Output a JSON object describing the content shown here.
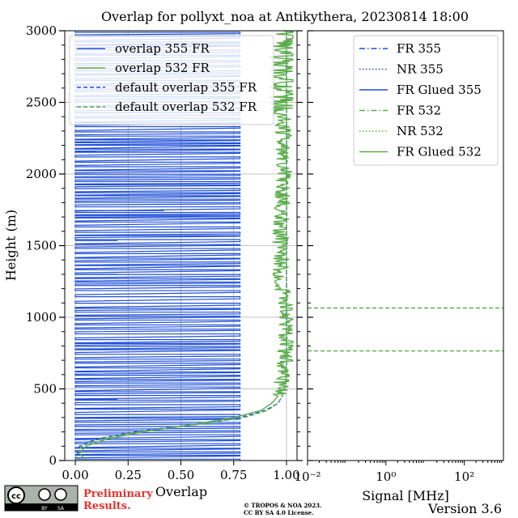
{
  "title": "Overlap for pollyxt_noa at Antikythera, 20230814 18:00",
  "footer": {
    "cc_badge": "cc BY SA",
    "preliminary": "Preliminary",
    "results": "Results.",
    "copyright_line1": "© TROPOS & NOA 2023.",
    "copyright_line2": "CC BY SA 4.0 License.",
    "version": "Version 3.6"
  },
  "colors": {
    "blue": "#1f4fd6",
    "green": "#5aad4a",
    "preliminary_red": "#e8322c"
  },
  "chart_data": [
    {
      "type": "line",
      "xlabel": "Overlap",
      "ylabel": "Height (m)",
      "xlim": [
        -0.05,
        1.05
      ],
      "ylim": [
        0,
        3000
      ],
      "x_ticks": [
        "0.00",
        "0.25",
        "0.50",
        "0.75",
        "1.00"
      ],
      "x_tick_values": [
        0,
        0.25,
        0.5,
        0.75,
        1.0
      ],
      "y_ticks": [
        "0",
        "500",
        "1000",
        "1500",
        "2000",
        "2500",
        "3000"
      ],
      "y_tick_values": [
        0,
        500,
        1000,
        1500,
        2000,
        2500,
        3000
      ],
      "grid": true,
      "legend_placement": "top-left",
      "series": [
        {
          "name": "overlap 355 FR",
          "color": "#1f4fd6",
          "style": "solid",
          "description_points": "noisy, alternates between 0 and 0.78",
          "x_range": [
            0,
            0.78
          ]
        },
        {
          "name": "overlap 532 FR",
          "color": "#5aad4a",
          "style": "solid",
          "height": [
            0,
            50,
            100,
            150,
            200,
            250,
            300,
            350,
            400,
            450,
            500,
            600,
            800,
            1000,
            1200,
            1500,
            2000,
            2500,
            3000
          ],
          "values": [
            0.05,
            0.02,
            0.05,
            0.15,
            0.32,
            0.55,
            0.75,
            0.88,
            0.93,
            0.96,
            0.97,
            0.99,
            1.0,
            1.0,
            0.98,
            0.97,
            0.99,
            0.98,
            1.0
          ]
        },
        {
          "name": "default overlap 355 FR",
          "color": "#1f4fd6",
          "style": "dashed",
          "height": [
            0,
            100,
            150,
            200,
            250,
            300,
            350,
            400,
            450,
            500,
            600,
            800,
            1200,
            2000,
            3000
          ],
          "values": [
            0.0,
            0.02,
            0.1,
            0.28,
            0.55,
            0.78,
            0.9,
            0.96,
            0.98,
            0.99,
            1.0,
            1.0,
            1.0,
            1.0,
            1.0
          ]
        },
        {
          "name": "default overlap 532 FR",
          "color": "#5aad4a",
          "style": "dashed",
          "height": [
            0,
            100,
            150,
            200,
            250,
            300,
            350,
            400,
            450,
            500,
            600,
            800,
            1200,
            2000,
            3000
          ],
          "values": [
            0.0,
            0.03,
            0.12,
            0.3,
            0.57,
            0.8,
            0.91,
            0.96,
            0.98,
            0.99,
            1.0,
            1.0,
            1.0,
            1.0,
            1.0
          ]
        }
      ]
    },
    {
      "type": "line",
      "xlabel": "Signal [MHz]",
      "x_scale": "log",
      "xlim": [
        0.01,
        1000
      ],
      "x_ticks": [
        "10⁻²",
        "10⁰",
        "10²"
      ],
      "x_tick_values": [
        0.01,
        1,
        100
      ],
      "ylim": [
        0,
        3000
      ],
      "grid": false,
      "legend_placement": "top-right",
      "series": [
        {
          "name": "FR 355",
          "color": "#1f4fd6",
          "style": "dashdot"
        },
        {
          "name": "NR 355",
          "color": "#1f4fd6",
          "style": "dotted"
        },
        {
          "name": "FR Glued 355",
          "color": "#1f4fd6",
          "style": "solid"
        },
        {
          "name": "FR 532",
          "color": "#5aad4a",
          "style": "dashdot"
        },
        {
          "name": "NR 532",
          "color": "#5aad4a",
          "style": "dotted"
        },
        {
          "name": "FR Glued 532",
          "color": "#5aad4a",
          "style": "solid"
        }
      ],
      "horizontal_lines": [
        {
          "height": 1065,
          "color": "#5aad4a",
          "style": "dashed"
        },
        {
          "height": 765,
          "color": "#5aad4a",
          "style": "dashed"
        }
      ]
    }
  ]
}
